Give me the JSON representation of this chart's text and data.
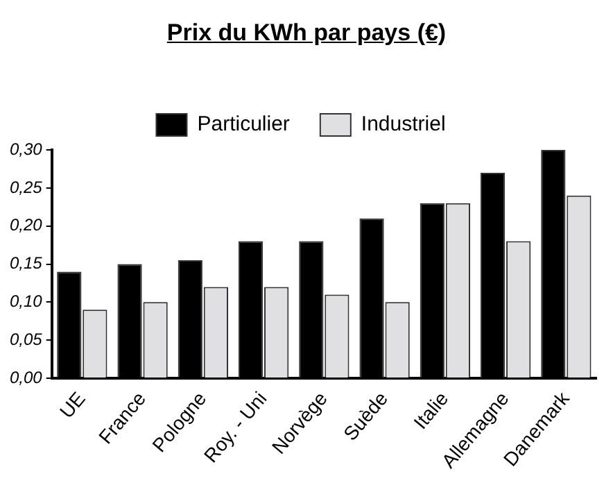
{
  "chart_data": {
    "type": "bar",
    "title": "Prix du KWh par pays (€)",
    "categories": [
      "UE",
      "France",
      "Pologne",
      "Roy. - Uni",
      "Norvège",
      "Suède",
      "Italie",
      "Allemagne",
      "Danemark"
    ],
    "series": [
      {
        "name": "Particulier",
        "color": "#000000",
        "values": [
          0.14,
          0.15,
          0.155,
          0.18,
          0.18,
          0.21,
          0.23,
          0.27,
          0.3
        ]
      },
      {
        "name": "Industriel",
        "color": "#e0e0e2",
        "values": [
          0.09,
          0.1,
          0.12,
          0.12,
          0.11,
          0.1,
          0.23,
          0.18,
          0.24
        ]
      }
    ],
    "ylim": [
      0,
      0.3
    ],
    "yticks": [
      {
        "value": 0,
        "label": "0,00"
      },
      {
        "value": 0.05,
        "label": "0,05"
      },
      {
        "value": 0.1,
        "label": "0,10"
      },
      {
        "value": 0.15,
        "label": "0,15"
      },
      {
        "value": 0.2,
        "label": "0,20"
      },
      {
        "value": 0.25,
        "label": "0,25"
      },
      {
        "value": 0.3,
        "label": "0,30"
      }
    ],
    "grid": false,
    "legend": "top"
  }
}
